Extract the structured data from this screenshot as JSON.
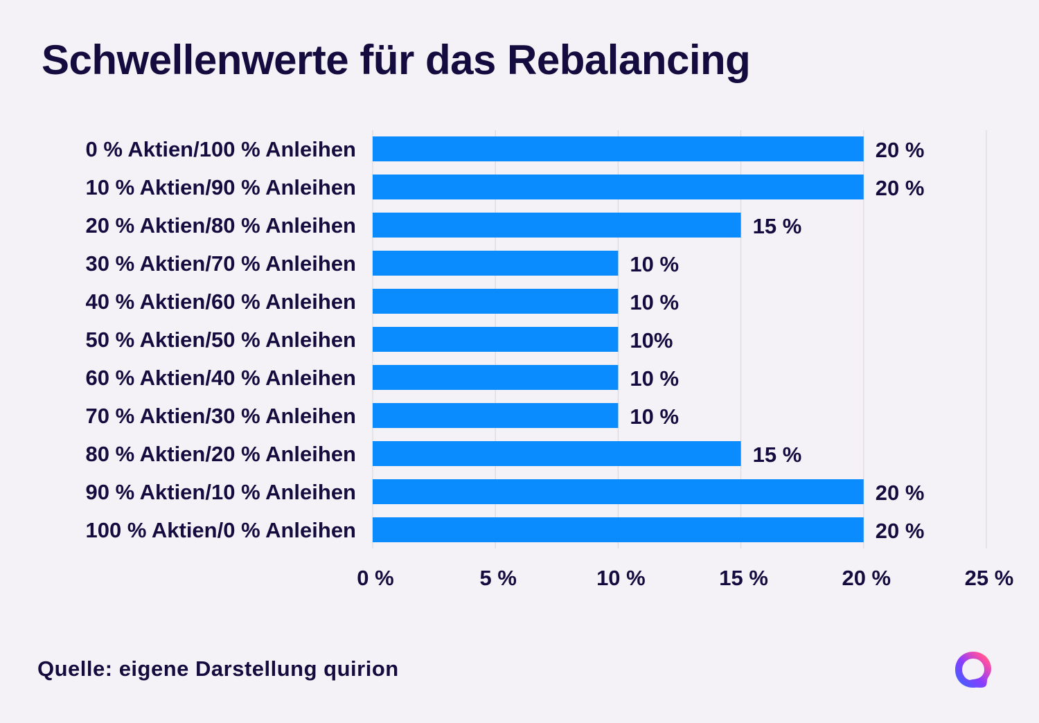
{
  "title": "Schwellenwerte für das Rebalancing",
  "source": "Quelle: eigene Darstellung quirion",
  "colors": {
    "bar": "#0a8cff",
    "text": "#140c3e",
    "grid": "#dcd8e2",
    "background": "#f4f1f7"
  },
  "chart_data": {
    "type": "bar",
    "orientation": "horizontal",
    "title": "Schwellenwerte für das Rebalancing",
    "categories": [
      "0 % Aktien/100 % Anleihen",
      "10 % Aktien/90 % Anleihen",
      "20 % Aktien/80 % Anleihen",
      "30 % Aktien/70 % Anleihen",
      "40 % Aktien/60 % Anleihen",
      "50 % Aktien/50 % Anleihen",
      "60 % Aktien/40 % Anleihen",
      "70 % Aktien/30 % Anleihen",
      "80 % Aktien/20 % Anleihen",
      "90 % Aktien/10 % Anleihen",
      "100 % Aktien/0 % Anleihen"
    ],
    "values": [
      20,
      20,
      15,
      10,
      10,
      10,
      10,
      10,
      15,
      20,
      20
    ],
    "data_labels": [
      "20 %",
      "20 %",
      "15 %",
      "10 %",
      "10 %",
      "10%",
      "10 %",
      "10 %",
      "15 %",
      "20 %",
      "20 %"
    ],
    "xlim": [
      0,
      25
    ],
    "xticks": [
      0,
      5,
      10,
      15,
      20,
      25
    ],
    "xtick_labels": [
      "0 %",
      "5 %",
      "10 %",
      "15 %",
      "20 %",
      "25 %"
    ],
    "xlabel": "",
    "ylabel": "",
    "grid": true,
    "legend": "none"
  }
}
